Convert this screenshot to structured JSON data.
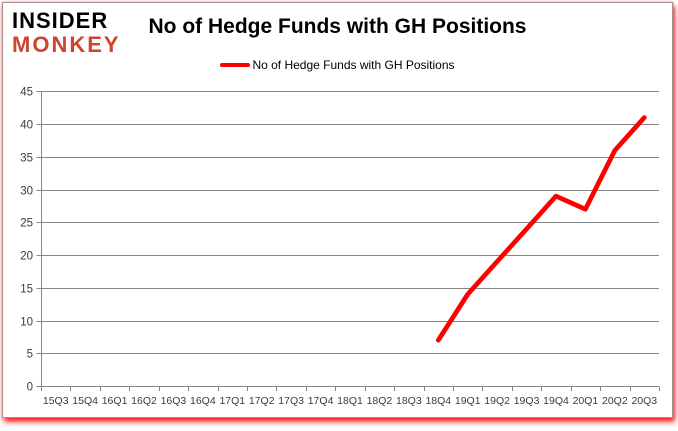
{
  "brand": {
    "line1": "INSIDER",
    "line2": "MONKEY",
    "red": "#d0442f"
  },
  "header": {
    "title": "No of Hedge Funds with GH Positions"
  },
  "legend": {
    "label": "No of Hedge Funds with GH Positions",
    "swatch_color": "#fe0000"
  },
  "chart_data": {
    "type": "line",
    "title": "No of Hedge Funds with GH Positions",
    "categories": [
      "15Q3",
      "15Q4",
      "16Q1",
      "16Q2",
      "16Q3",
      "16Q4",
      "17Q1",
      "17Q2",
      "17Q3",
      "17Q4",
      "18Q1",
      "18Q2",
      "18Q3",
      "18Q4",
      "19Q1",
      "19Q2",
      "19Q3",
      "19Q4",
      "20Q1",
      "20Q2",
      "20Q3"
    ],
    "series": [
      {
        "name": "No of Hedge Funds with GH Positions",
        "color": "#fe0000",
        "values": [
          null,
          null,
          null,
          null,
          null,
          null,
          null,
          null,
          null,
          null,
          null,
          null,
          null,
          7,
          14,
          19,
          24,
          29,
          27,
          36,
          41
        ]
      }
    ],
    "xlabel": "",
    "ylabel": "",
    "ylim": [
      0,
      45
    ],
    "ytick_step": 5,
    "grid": true,
    "legend_position": "top"
  },
  "colors": {
    "grid": "#868686",
    "axis": "#868686",
    "tick_label": "#3b3b3b"
  }
}
